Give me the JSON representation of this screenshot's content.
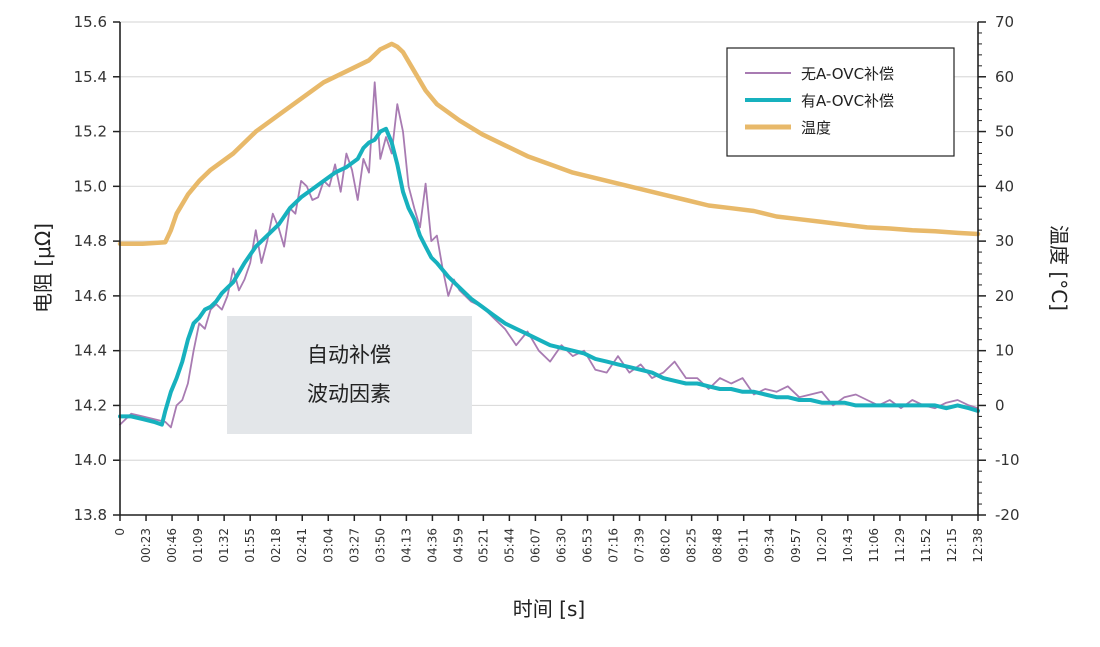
{
  "chart_data": {
    "type": "line",
    "xlabel": "时间 [s]",
    "ylabel_left": "电阻 [μΩ]",
    "ylabel_right": "温度 [°C]",
    "x_ticks": [
      "0",
      "00:23",
      "00:46",
      "01:09",
      "01:32",
      "01:55",
      "02:18",
      "02:41",
      "03:04",
      "03:27",
      "03:50",
      "04:13",
      "04:36",
      "04:59",
      "05:21",
      "05:44",
      "06:07",
      "06:30",
      "06:53",
      "07:16",
      "07:39",
      "08:02",
      "08:25",
      "08:48",
      "09:11",
      "09:34",
      "09:57",
      "10:20",
      "10:43",
      "11:06",
      "11:29",
      "11:52",
      "12:15",
      "12:38"
    ],
    "x_range_seconds": [
      0,
      758
    ],
    "y_left_range": [
      13.8,
      15.6
    ],
    "y_left_ticks": [
      "13.8",
      "14.0",
      "14.2",
      "14.4",
      "14.6",
      "14.8",
      "15.0",
      "15.2",
      "15.4",
      "15.6"
    ],
    "y_right_range": [
      -20,
      70
    ],
    "y_right_ticks": [
      "-20",
      "-10",
      "0",
      "10",
      "20",
      "30",
      "40",
      "50",
      "60",
      "70"
    ],
    "grid": "horizontal",
    "legend_position": "top-right",
    "annotation": {
      "lines": [
        "自动补偿",
        "波动因素"
      ]
    },
    "series": [
      {
        "name": "无A-OVC补偿",
        "axis": "left",
        "color": "#a87bb2",
        "x": [
          0,
          10,
          20,
          30,
          40,
          45,
          50,
          55,
          60,
          65,
          70,
          75,
          80,
          85,
          90,
          95,
          100,
          105,
          110,
          115,
          120,
          125,
          130,
          135,
          140,
          145,
          150,
          155,
          160,
          165,
          170,
          175,
          180,
          185,
          190,
          195,
          200,
          205,
          210,
          215,
          220,
          225,
          230,
          235,
          240,
          245,
          250,
          255,
          260,
          265,
          270,
          275,
          280,
          285,
          290,
          295,
          300,
          310,
          320,
          330,
          340,
          350,
          360,
          370,
          380,
          390,
          400,
          410,
          420,
          430,
          440,
          450,
          460,
          470,
          480,
          490,
          500,
          510,
          520,
          530,
          540,
          550,
          560,
          570,
          580,
          590,
          600,
          610,
          620,
          630,
          640,
          650,
          660,
          670,
          680,
          690,
          700,
          710,
          720,
          730,
          740,
          750,
          758
        ],
        "values": [
          14.13,
          14.17,
          14.16,
          14.15,
          14.14,
          14.12,
          14.2,
          14.22,
          14.28,
          14.4,
          14.5,
          14.48,
          14.55,
          14.57,
          14.55,
          14.6,
          14.7,
          14.62,
          14.66,
          14.72,
          14.84,
          14.72,
          14.8,
          14.9,
          14.85,
          14.78,
          14.92,
          14.9,
          15.02,
          15.0,
          14.95,
          14.96,
          15.02,
          15.0,
          15.08,
          14.98,
          15.12,
          15.06,
          14.95,
          15.1,
          15.05,
          15.38,
          15.1,
          15.18,
          15.12,
          15.3,
          15.2,
          15.0,
          14.92,
          14.85,
          15.01,
          14.8,
          14.82,
          14.7,
          14.6,
          14.66,
          14.62,
          14.58,
          14.56,
          14.52,
          14.48,
          14.42,
          14.47,
          14.4,
          14.36,
          14.42,
          14.38,
          14.4,
          14.33,
          14.32,
          14.38,
          14.32,
          14.35,
          14.3,
          14.32,
          14.36,
          14.3,
          14.3,
          14.26,
          14.3,
          14.28,
          14.3,
          14.24,
          14.26,
          14.25,
          14.27,
          14.23,
          14.24,
          14.25,
          14.2,
          14.23,
          14.24,
          14.22,
          14.2,
          14.22,
          14.19,
          14.22,
          14.2,
          14.19,
          14.21,
          14.22,
          14.2,
          14.19
        ]
      },
      {
        "name": "有A-OVC补偿",
        "axis": "left",
        "color": "#17b1be",
        "x": [
          0,
          10,
          20,
          30,
          37,
          40,
          45,
          50,
          55,
          60,
          65,
          70,
          75,
          80,
          85,
          90,
          95,
          100,
          110,
          120,
          130,
          140,
          150,
          160,
          170,
          180,
          190,
          200,
          210,
          215,
          220,
          225,
          230,
          235,
          240,
          245,
          250,
          255,
          260,
          265,
          270,
          275,
          280,
          290,
          300,
          310,
          320,
          330,
          340,
          350,
          360,
          370,
          380,
          390,
          400,
          410,
          420,
          430,
          440,
          450,
          460,
          470,
          480,
          490,
          500,
          510,
          520,
          530,
          540,
          550,
          560,
          570,
          580,
          590,
          600,
          610,
          620,
          630,
          640,
          650,
          660,
          670,
          680,
          690,
          700,
          710,
          720,
          730,
          740,
          750,
          758
        ],
        "values": [
          14.16,
          14.16,
          14.15,
          14.14,
          14.13,
          14.18,
          14.25,
          14.3,
          14.36,
          14.44,
          14.5,
          14.52,
          14.55,
          14.56,
          14.58,
          14.61,
          14.63,
          14.65,
          14.72,
          14.78,
          14.82,
          14.86,
          14.92,
          14.96,
          14.99,
          15.02,
          15.05,
          15.07,
          15.1,
          15.14,
          15.16,
          15.17,
          15.2,
          15.21,
          15.16,
          15.08,
          14.98,
          14.92,
          14.88,
          14.82,
          14.78,
          14.74,
          14.72,
          14.67,
          14.63,
          14.59,
          14.56,
          14.53,
          14.5,
          14.48,
          14.46,
          14.44,
          14.42,
          14.41,
          14.4,
          14.39,
          14.37,
          14.36,
          14.35,
          14.34,
          14.33,
          14.32,
          14.3,
          14.29,
          14.28,
          14.28,
          14.27,
          14.26,
          14.26,
          14.25,
          14.25,
          14.24,
          14.23,
          14.23,
          14.22,
          14.22,
          14.21,
          14.21,
          14.21,
          14.2,
          14.2,
          14.2,
          14.2,
          14.2,
          14.2,
          14.2,
          14.2,
          14.19,
          14.2,
          14.19,
          14.18
        ]
      },
      {
        "name": "温度",
        "axis": "right",
        "color": "#e8b96a",
        "x": [
          0,
          20,
          40,
          45,
          50,
          60,
          70,
          80,
          100,
          120,
          140,
          160,
          180,
          200,
          220,
          230,
          240,
          245,
          250,
          260,
          270,
          280,
          300,
          320,
          340,
          360,
          380,
          400,
          420,
          440,
          460,
          480,
          500,
          520,
          540,
          560,
          580,
          600,
          620,
          640,
          660,
          680,
          700,
          720,
          740,
          758
        ],
        "values": [
          29.5,
          29.5,
          29.8,
          32,
          35,
          38.5,
          41,
          43,
          46,
          50,
          53,
          56,
          59,
          61,
          63,
          65,
          66,
          65.5,
          64.5,
          61,
          57.5,
          55,
          52,
          49.5,
          47.5,
          45.5,
          44,
          42.5,
          41.5,
          40.5,
          39.5,
          38.5,
          37.5,
          36.5,
          36,
          35.5,
          34.5,
          34,
          33.5,
          33,
          32.5,
          32.3,
          32,
          31.8,
          31.5,
          31.3
        ]
      }
    ]
  }
}
